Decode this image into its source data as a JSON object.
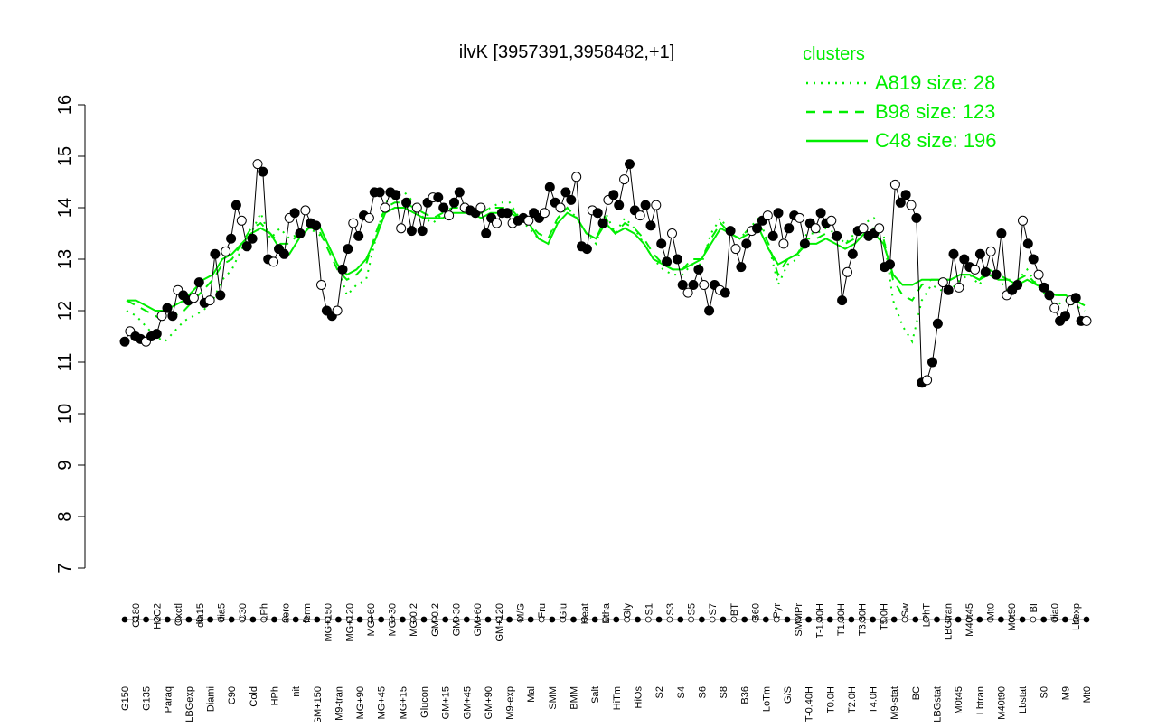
{
  "chart_data": {
    "type": "line",
    "title": "ilvK [3957391,3958482,+1]",
    "xlabel": "",
    "ylabel": "",
    "ylim": [
      7,
      16
    ],
    "yticks": [
      7,
      8,
      9,
      10,
      11,
      12,
      13,
      14,
      15,
      16
    ],
    "grid": false,
    "legend": {
      "title": "clusters",
      "placement": "top-right",
      "entries": [
        {
          "label": "A819 size: 28",
          "style": "dotted"
        },
        {
          "label": "B98 size: 123",
          "style": "dashed"
        },
        {
          "label": "C48 size: 196",
          "style": "solid"
        }
      ]
    },
    "colors": {
      "cluster_lines": "#00ee00",
      "points": "#000000",
      "axis": "#000000"
    },
    "x_tick_labels": [
      "G150",
      "G180",
      "G135",
      "H2O2",
      "Paraq",
      "Oxctl",
      "LBGexp",
      "dia15",
      "Diami",
      "dia5",
      "C90",
      "C30",
      "Cold",
      "LPh",
      "HPh",
      "aero",
      "nit",
      "ferm",
      "GM+150",
      "MG+150",
      "M9-tran",
      "MG+120",
      "MG+90",
      "MG+60",
      "MG+45",
      "MG+30",
      "MG+15",
      "MG-0.2",
      "Glucon",
      "GM-0.2",
      "GM+15",
      "GM+30",
      "GM+45",
      "GM+60",
      "GM+90",
      "GM+120",
      "M9-exp",
      "M/G",
      "Mal",
      "Fru",
      "SMM",
      "Glu",
      "BMM",
      "Heat",
      "Salt",
      "Etha",
      "HiTm",
      "Gly",
      "HiOs",
      "S1",
      "S2",
      "S3",
      "S4",
      "S5",
      "S6",
      "S7",
      "S8",
      "BT",
      "B36",
      "B60",
      "LoTm",
      "Pyr",
      "G/S",
      "SMMPr",
      "T-0.40H",
      "T-1.40H",
      "T0.0H",
      "T1.30H",
      "T2.0H",
      "T3.30H",
      "T4.0H",
      "T5.0H",
      "M9-stat",
      "Sw",
      "BC",
      "LPhT",
      "LBGstat",
      "LBGtran",
      "M0t45",
      "M40t45",
      "Lbtran",
      "Mt0",
      "M40t90",
      "M0t90",
      "Lbstat",
      "BI",
      "S0",
      "dia0",
      "M9",
      "Lbexp",
      "Mt0"
    ],
    "series_points": [
      11.4,
      11.6,
      11.5,
      11.45,
      11.4,
      11.5,
      11.55,
      11.9,
      12.05,
      11.9,
      12.4,
      12.3,
      12.2,
      12.25,
      12.55,
      12.15,
      12.2,
      13.1,
      12.3,
      13.15,
      13.4,
      14.05,
      13.75,
      13.25,
      13.4,
      14.85,
      14.7,
      13.0,
      12.95,
      13.2,
      13.1,
      13.8,
      13.9,
      13.5,
      13.95,
      13.7,
      13.65,
      12.5,
      12.0,
      11.9,
      12.0,
      12.8,
      13.2,
      13.7,
      13.45,
      13.85,
      13.8,
      14.3,
      14.3,
      14.0,
      14.3,
      14.25,
      13.6,
      14.1,
      13.55,
      14.0,
      13.55,
      14.1,
      14.2,
      14.2,
      14.0,
      13.85,
      14.1,
      14.3,
      14.0,
      13.95,
      13.9,
      14.0,
      13.5,
      13.8,
      13.7,
      13.9,
      13.9,
      13.7,
      13.75,
      13.8,
      13.75,
      13.9,
      13.8,
      13.9,
      14.4,
      14.1,
      14.0,
      14.3,
      14.15,
      14.6,
      13.25,
      13.2,
      13.95,
      13.9,
      13.7,
      14.15,
      14.25,
      14.05,
      14.55,
      14.85,
      13.95,
      13.85,
      14.05,
      13.65,
      14.05,
      13.3,
      12.95,
      13.5,
      13.0,
      12.5,
      12.35,
      12.5,
      12.8,
      12.5,
      12.0,
      12.5,
      12.4,
      12.35,
      13.55,
      13.2,
      12.85,
      13.3,
      13.55,
      13.6,
      13.75,
      13.85,
      13.45,
      13.9,
      13.3,
      13.6,
      13.85,
      13.8,
      13.3,
      13.7,
      13.6,
      13.9,
      13.7,
      13.75,
      13.45,
      12.2,
      12.75,
      13.1,
      13.55,
      13.6,
      13.45,
      13.5,
      13.6,
      12.85,
      12.9,
      14.45,
      14.1,
      14.25,
      14.05,
      13.8,
      10.6,
      10.65,
      11.0,
      11.75,
      12.55,
      12.4,
      13.1,
      12.45,
      13.0,
      12.85,
      12.8,
      13.1,
      12.75,
      13.15,
      12.7,
      13.5,
      12.3,
      12.4,
      12.5,
      13.75,
      13.3,
      13.0,
      12.7,
      12.45,
      12.3,
      12.05,
      11.8,
      11.9,
      12.2,
      12.25,
      11.8,
      11.8
    ],
    "clusters": [
      {
        "name": "A819 size: 28",
        "style": "dotted",
        "values": [
          12.0,
          11.9,
          11.7,
          11.5,
          11.4,
          11.6,
          11.8,
          11.9,
          12.0,
          12.2,
          12.6,
          12.8,
          13.2,
          13.5,
          13.9,
          13.4,
          13.6,
          13.4,
          13.5,
          13.6,
          13.5,
          13.3,
          12.9,
          12.3,
          12.5,
          12.6,
          13.4,
          14.1,
          14.2,
          14.3,
          14.1,
          13.8,
          13.7,
          13.9,
          14.0,
          14.1,
          14.0,
          13.9,
          14.0,
          14.1,
          14.1,
          13.8,
          13.6,
          13.4,
          13.3,
          13.8,
          14.0,
          13.8,
          13.5,
          13.3,
          13.9,
          13.5,
          13.8,
          13.6,
          13.3,
          13.0,
          12.8,
          12.7,
          12.7,
          12.9,
          12.9,
          13.5,
          13.8,
          13.5,
          13.4,
          13.6,
          13.8,
          13.3,
          12.5,
          12.9,
          13.0,
          13.5,
          13.5,
          13.6,
          13.5,
          13.3,
          13.5,
          13.7,
          13.8,
          13.5,
          12.2,
          11.7,
          11.4,
          12.2,
          12.5,
          12.4,
          12.4,
          12.6,
          12.7,
          12.5,
          12.8,
          12.6,
          12.4,
          12.6,
          12.8,
          12.5,
          12.3,
          12.1,
          12.2,
          12.1,
          12.0
        ]
      },
      {
        "name": "B98 size: 123",
        "style": "dashed",
        "values": [
          12.2,
          12.1,
          12.0,
          11.9,
          11.8,
          11.9,
          12.0,
          12.2,
          12.4,
          12.6,
          12.9,
          13.0,
          13.3,
          13.6,
          13.7,
          13.5,
          13.3,
          13.3,
          13.5,
          13.6,
          13.6,
          13.2,
          12.8,
          12.6,
          12.7,
          12.9,
          13.5,
          14.0,
          14.1,
          14.1,
          14.0,
          13.9,
          13.8,
          13.9,
          14.0,
          14.0,
          13.9,
          13.9,
          14.0,
          14.0,
          14.0,
          13.8,
          13.7,
          13.5,
          13.4,
          13.8,
          14.0,
          13.8,
          13.5,
          13.4,
          13.8,
          13.5,
          13.7,
          13.6,
          13.4,
          13.1,
          12.9,
          12.8,
          12.8,
          13.0,
          13.0,
          13.4,
          13.7,
          13.5,
          13.4,
          13.6,
          13.7,
          13.3,
          12.7,
          13.0,
          13.1,
          13.4,
          13.4,
          13.5,
          13.4,
          13.3,
          13.4,
          13.6,
          13.6,
          13.4,
          12.6,
          12.3,
          12.2,
          12.5,
          12.6,
          12.6,
          12.6,
          12.7,
          12.7,
          12.6,
          12.8,
          12.7,
          12.6,
          12.6,
          12.7,
          12.5,
          12.4,
          12.3,
          12.3,
          12.2,
          12.1
        ]
      },
      {
        "name": "C48 size: 196",
        "style": "solid",
        "values": [
          12.2,
          12.2,
          12.1,
          12.0,
          12.0,
          12.1,
          12.2,
          12.4,
          12.6,
          12.7,
          13.0,
          13.1,
          13.3,
          13.5,
          13.6,
          13.5,
          13.2,
          13.1,
          13.4,
          13.6,
          13.7,
          13.3,
          12.9,
          12.7,
          12.8,
          13.0,
          13.4,
          13.9,
          14.0,
          14.0,
          13.9,
          13.8,
          13.8,
          13.8,
          13.9,
          13.9,
          13.9,
          13.8,
          13.9,
          13.9,
          13.9,
          13.8,
          13.7,
          13.4,
          13.3,
          13.7,
          13.9,
          13.8,
          13.5,
          13.4,
          13.7,
          13.5,
          13.6,
          13.5,
          13.3,
          13.0,
          12.9,
          12.8,
          12.8,
          12.9,
          13.0,
          13.3,
          13.6,
          13.5,
          13.4,
          13.5,
          13.6,
          13.2,
          12.9,
          13.0,
          13.1,
          13.3,
          13.3,
          13.4,
          13.3,
          13.2,
          13.3,
          13.5,
          13.5,
          13.3,
          12.7,
          12.5,
          12.5,
          12.6,
          12.6,
          12.6,
          12.6,
          12.7,
          12.7,
          12.6,
          12.7,
          12.6,
          12.6,
          12.5,
          12.6,
          12.5,
          12.4,
          12.3,
          12.3,
          12.2,
          12.1
        ]
      }
    ]
  }
}
